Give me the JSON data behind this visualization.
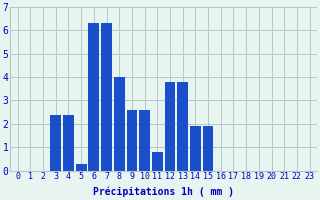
{
  "values": [
    0,
    0,
    0,
    2.4,
    2.4,
    0.3,
    6.3,
    6.3,
    4.0,
    2.6,
    2.6,
    0.8,
    3.8,
    3.8,
    1.9,
    1.9,
    0,
    0,
    0,
    0,
    0,
    0,
    0,
    0
  ],
  "xlabel": "Précipitations 1h ( mm )",
  "ylim": [
    0,
    7
  ],
  "yticks": [
    0,
    1,
    2,
    3,
    4,
    5,
    6,
    7
  ],
  "xtick_labels": [
    "0",
    "1",
    "2",
    "3",
    "4",
    "5",
    "6",
    "7",
    "8",
    "9",
    "10",
    "11",
    "12",
    "13",
    "14",
    "15",
    "16",
    "17",
    "18",
    "19",
    "20",
    "21",
    "22",
    "23"
  ],
  "bar_color": "#1a4fcc",
  "bg_color": "#e8f4f0",
  "grid_color": "#b0c8c8",
  "text_color": "#0000bb",
  "xlabel_fontsize": 7,
  "tick_fontsize": 6,
  "figsize": [
    3.2,
    2.0
  ],
  "dpi": 100
}
